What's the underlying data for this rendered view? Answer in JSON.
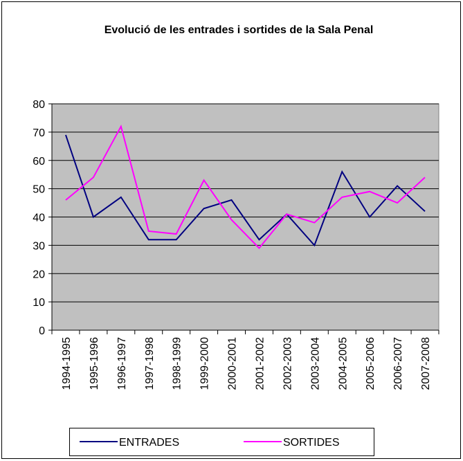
{
  "chart_data": {
    "type": "line",
    "title": "Evolució de les entrades i sortides de la Sala Penal",
    "categories": [
      "1994-1995",
      "1995-1996",
      "1996-1997",
      "1997-1998",
      "1998-1999",
      "1999-2000",
      "2000-2001",
      "2001-2002",
      "2002-2003",
      "2003-2004",
      "2004-2005",
      "2005-2006",
      "2006-2007",
      "2007-2008"
    ],
    "series": [
      {
        "name": "ENTRADES",
        "color": "#000080",
        "values": [
          69,
          40,
          47,
          32,
          32,
          43,
          46,
          32,
          41,
          30,
          56,
          40,
          51,
          42
        ]
      },
      {
        "name": "SORTIDES",
        "color": "#ff00ff",
        "values": [
          46,
          54,
          72,
          35,
          34,
          53,
          39,
          29,
          41,
          38,
          47,
          49,
          45,
          54
        ]
      }
    ],
    "ylim": [
      0,
      80
    ],
    "yticks": [
      0,
      10,
      20,
      30,
      40,
      50,
      60,
      70,
      80
    ],
    "grid": true,
    "legend": "bottom"
  }
}
